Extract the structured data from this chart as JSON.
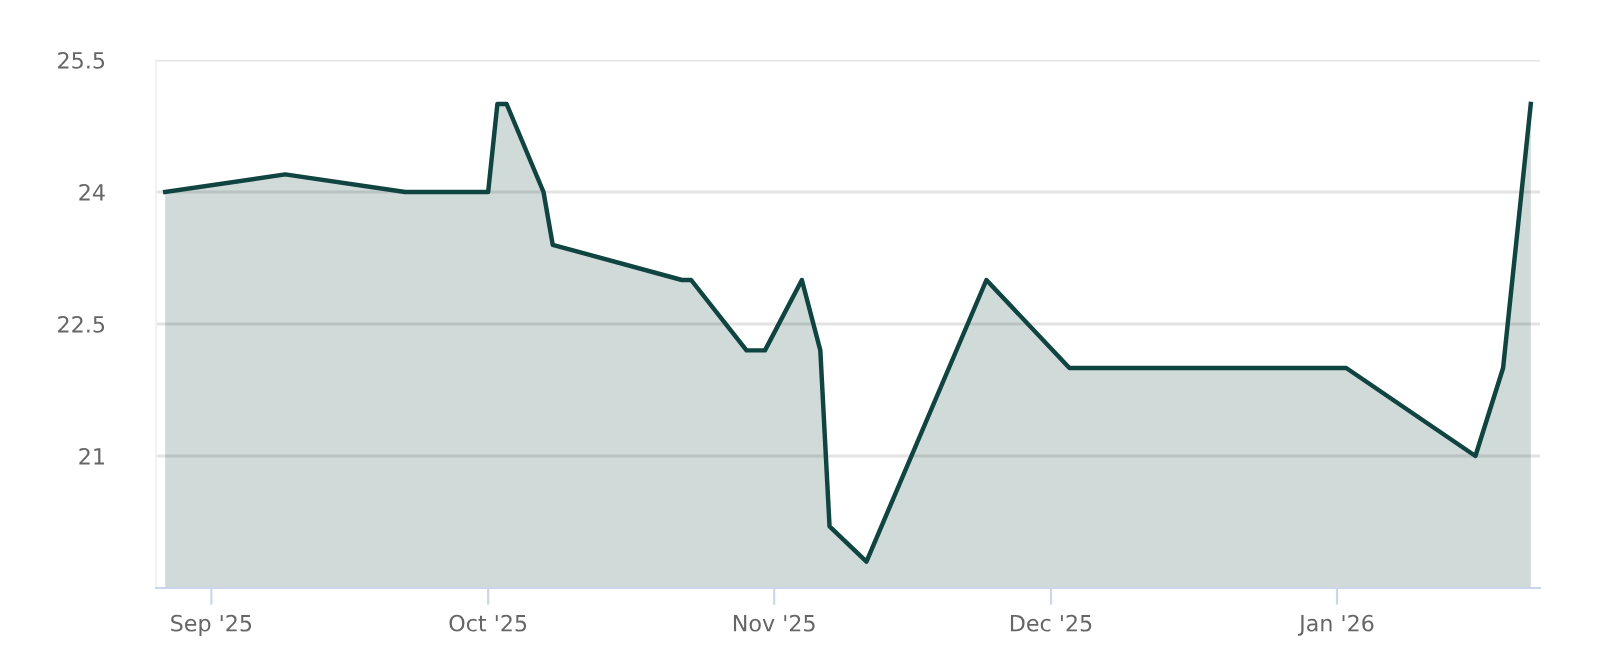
{
  "chart_data": {
    "type": "area",
    "x": [
      "2025-08-27",
      "2025-09-09",
      "2025-09-22",
      "2025-10-01",
      "2025-10-02",
      "2025-10-03",
      "2025-10-07",
      "2025-10-08",
      "2025-10-22",
      "2025-10-23",
      "2025-10-29",
      "2025-10-31",
      "2025-11-04",
      "2025-11-06",
      "2025-11-07",
      "2025-11-11",
      "2025-11-24",
      "2025-12-03",
      "2026-01-02",
      "2026-01-16",
      "2026-01-19",
      "2026-01-22"
    ],
    "series": [
      {
        "color": "#0f4441",
        "values": [
          24.0,
          24.2,
          24.0,
          24.0,
          25.0,
          25.0,
          24.0,
          23.4,
          23.0,
          23.0,
          22.2,
          22.2,
          23.0,
          22.2,
          20.2,
          19.8,
          23.0,
          22.0,
          22.0,
          21.0,
          22.0,
          25.0
        ]
      }
    ],
    "xlim": [
      "2025-08-26",
      "2026-01-23"
    ],
    "xticks": [
      {
        "value": "2025-09-01",
        "label": "Sep '25"
      },
      {
        "value": "2025-10-01",
        "label": "Oct '25"
      },
      {
        "value": "2025-11-01",
        "label": "Nov '25"
      },
      {
        "value": "2025-12-01",
        "label": "Dec '25"
      },
      {
        "value": "2026-01-01",
        "label": "Jan '26"
      }
    ],
    "ylim": [
      19.5,
      25.5
    ],
    "yticks": [
      {
        "value": 21,
        "label": "21"
      },
      {
        "value": 22.5,
        "label": "22.5"
      },
      {
        "value": 24,
        "label": "24"
      },
      {
        "value": 25.5,
        "label": "25.5"
      }
    ],
    "grid": "y",
    "marker": "none",
    "line_style": "solid"
  }
}
